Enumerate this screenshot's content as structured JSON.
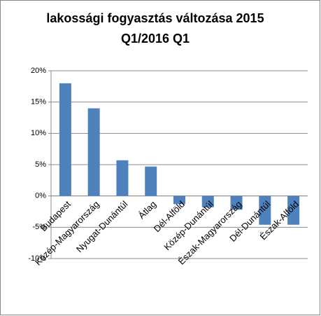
{
  "chart_data": {
    "type": "bar",
    "title": [
      "lakossági fogyasztás változása  2015",
      "Q1/2016 Q1"
    ],
    "categories": [
      "Budapest",
      "Közép-Magyarország",
      "Nyugat-Dunántúl",
      "Átlag",
      "Dél-Alföld",
      "Közép-Dunántúl",
      "Észak-Magyarország",
      "Dél-Dunántúl",
      "Észak-Alföld"
    ],
    "values": [
      18,
      14,
      5.7,
      4.7,
      -1.3,
      -1.8,
      -2.2,
      -4.6,
      -4.6
    ],
    "color": "#4f81bd",
    "ylim": [
      -10,
      20
    ],
    "yticks": [
      {
        "value": -10,
        "label": "-10%"
      },
      {
        "value": -5,
        "label": "-5%"
      },
      {
        "value": 0,
        "label": "0%"
      },
      {
        "value": 5,
        "label": "5%"
      },
      {
        "value": 10,
        "label": "10%"
      },
      {
        "value": 15,
        "label": "15%"
      },
      {
        "value": 20,
        "label": "20%"
      }
    ],
    "grid": true
  }
}
